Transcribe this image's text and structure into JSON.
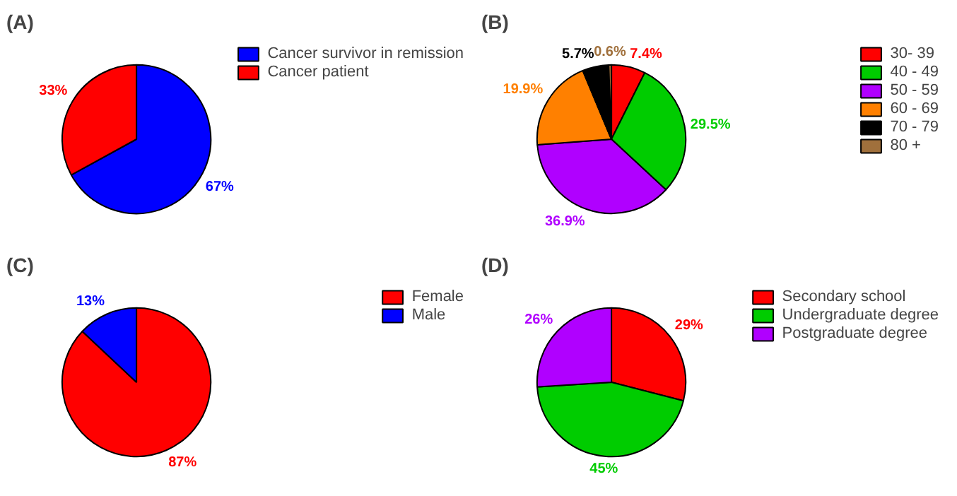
{
  "chart_data": [
    {
      "type": "pie",
      "title": "(A)",
      "categories": [
        "Cancer survivor in remission",
        "Cancer patient"
      ],
      "values": [
        67,
        33
      ],
      "colors": [
        "#0000ff",
        "#ff0000"
      ],
      "value_labels": [
        "67%",
        "33%"
      ],
      "legend": "right"
    },
    {
      "type": "pie",
      "title": "(B)",
      "categories": [
        "30- 39",
        "40 - 49",
        "50 - 59",
        "60 - 69",
        "70 - 79",
        "80 +"
      ],
      "values": [
        7.4,
        29.5,
        36.9,
        19.9,
        5.7,
        0.6
      ],
      "colors": [
        "#ff0000",
        "#00cc00",
        "#b000ff",
        "#ff8000",
        "#000000",
        "#a0703c"
      ],
      "value_labels": [
        "7.4%",
        "29.5%",
        "36.9%",
        "19.9%",
        "5.7%",
        "0.6%"
      ],
      "legend": "right"
    },
    {
      "type": "pie",
      "title": "(C)",
      "categories": [
        "Female",
        "Male"
      ],
      "values": [
        87,
        13
      ],
      "colors": [
        "#ff0000",
        "#0000ff"
      ],
      "value_labels": [
        "87%",
        "13%"
      ],
      "legend": "right"
    },
    {
      "type": "pie",
      "title": "(D)",
      "categories": [
        "Secondary school",
        "Undergraduate degree",
        "Postgraduate degree"
      ],
      "values": [
        29,
        45,
        26
      ],
      "colors": [
        "#ff0000",
        "#00cc00",
        "#b000ff"
      ],
      "value_labels": [
        "29%",
        "45%",
        "26%"
      ],
      "legend": "right"
    }
  ]
}
